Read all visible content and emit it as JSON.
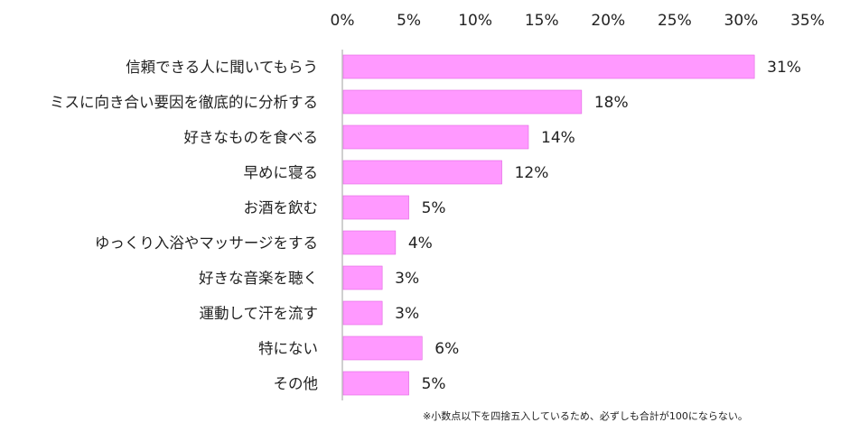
{
  "chart_data": {
    "type": "bar",
    "orientation": "horizontal",
    "categories": [
      "信頼できる人に聞いてもらう",
      "ミスに向き合い要因を徹底的に分析する",
      "好きなものを食べる",
      "早めに寝る",
      "お酒を飲む",
      "ゆっくり入浴やマッサージをする",
      "好きな音楽を聴く",
      "運動して汗を流す",
      "特にない",
      "その他"
    ],
    "values": [
      31,
      18,
      14,
      12,
      5,
      4,
      3,
      3,
      6,
      5
    ],
    "data_labels": [
      "31%",
      "18%",
      "14%",
      "12%",
      "5%",
      "4%",
      "3%",
      "3%",
      "6%",
      "5%"
    ],
    "xlim": [
      0,
      35
    ],
    "xticks": [
      0,
      5,
      10,
      15,
      20,
      25,
      30,
      35
    ],
    "xtick_labels": [
      "0%",
      "5%",
      "10%",
      "15%",
      "20%",
      "25%",
      "30%",
      "35%"
    ],
    "axis_position": "top",
    "grid": false,
    "bar_color": "#ff99ff",
    "bar_border_color": "#e066e0",
    "axis_color": "#bfbfbf"
  },
  "footnote": "※小数点以下を四捨五入しているため、必ずしも合計が100にならない。"
}
